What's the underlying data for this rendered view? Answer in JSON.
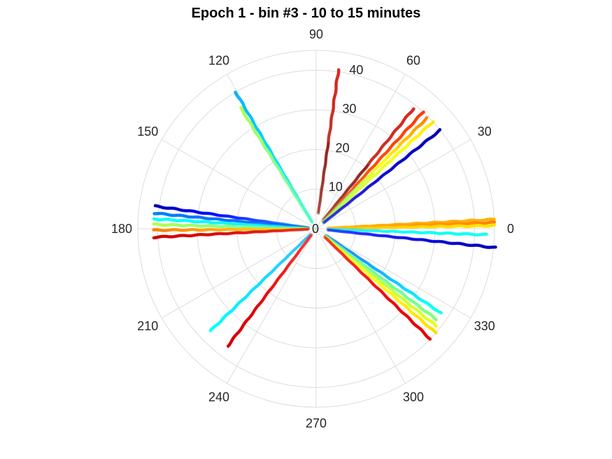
{
  "chart_data": {
    "type": "scatter",
    "projection": "polar",
    "title": "Epoch 1 - bin #3 - 10 to 15 minutes",
    "theta_unit": "degrees",
    "theta_ticks": [
      0,
      30,
      60,
      90,
      120,
      150,
      180,
      210,
      240,
      270,
      300,
      330
    ],
    "theta_tick_labels": [
      "0",
      "30",
      "60",
      "90",
      "120",
      "150",
      "180",
      "210",
      "240",
      "270",
      "300",
      "330"
    ],
    "r_ticks": [
      0,
      10,
      20,
      30,
      40
    ],
    "r_tick_labels": [
      "0",
      "10",
      "20",
      "30",
      "40"
    ],
    "rlim": [
      0,
      45
    ],
    "r_tick_label_angle_deg": 80,
    "grid": true,
    "colormap": "jet",
    "marker": "filled circle",
    "series": [
      {
        "theta": 82,
        "r": [
          4,
          40.5
        ],
        "color_from": 0.95,
        "color_to": 0.98,
        "shade": "dark"
      },
      {
        "theta": 51,
        "r": [
          3,
          39
        ],
        "color_from": 0.95,
        "color_to": 0.99,
        "shade": "dark"
      },
      {
        "theta": 47.5,
        "r": [
          2.5,
          40
        ],
        "color_from": 0.8,
        "color_to": 0.82
      },
      {
        "theta": 45,
        "r": [
          2.5,
          39.5
        ],
        "color_from": 0.45,
        "color_to": 0.75
      },
      {
        "theta": 42.5,
        "r": [
          2.5,
          40
        ],
        "color_from": 0.55,
        "color_to": 0.65
      },
      {
        "theta": 38.5,
        "r": [
          2.5,
          40
        ],
        "color_from": 0.1,
        "color_to": 0.05
      },
      {
        "theta": 3,
        "r": [
          3,
          45
        ],
        "color_from": 0.72,
        "color_to": 0.7
      },
      {
        "theta": 2,
        "r": [
          3,
          45
        ],
        "color_from": 0.7,
        "color_to": 0.75
      },
      {
        "theta": 1,
        "r": [
          3,
          45
        ],
        "color_from": 0.68,
        "color_to": 0.65
      },
      {
        "theta": -2,
        "r": [
          3,
          43
        ],
        "color_from": 0.35,
        "color_to": 0.4
      },
      {
        "theta": -6,
        "r": [
          3,
          45.5
        ],
        "color_from": 0.15,
        "color_to": 0.05
      },
      {
        "theta": -34,
        "r": [
          3,
          38
        ],
        "color_from": 0.2,
        "color_to": 0.4
      },
      {
        "theta": -37,
        "r": [
          3,
          38
        ],
        "color_from": 0.45,
        "color_to": 0.5
      },
      {
        "theta": -39,
        "r": [
          3,
          39
        ],
        "color_from": 0.5,
        "color_to": 0.6
      },
      {
        "theta": -41,
        "r": [
          3,
          40
        ],
        "color_from": 0.6,
        "color_to": 0.66
      },
      {
        "theta": -44,
        "r": [
          3,
          40
        ],
        "color_from": 0.88,
        "color_to": 0.9
      },
      {
        "theta": 120.5,
        "r": [
          2,
          40
        ],
        "color_from": 0.38,
        "color_to": 0.3
      },
      {
        "theta": 122,
        "r": [
          2,
          36
        ],
        "color_from": 0.45,
        "color_to": 0.55
      },
      {
        "theta": 172,
        "r": [
          2,
          41
        ],
        "color_from": 0.25,
        "color_to": 0.05
      },
      {
        "theta": 174.5,
        "r": [
          2,
          41
        ],
        "color_from": 0.2,
        "color_to": 0.25
      },
      {
        "theta": 176.5,
        "r": [
          2,
          41
        ],
        "color_from": 0.35,
        "color_to": 0.38
      },
      {
        "theta": 178.5,
        "r": [
          2,
          41
        ],
        "color_from": 0.45,
        "color_to": 0.55
      },
      {
        "theta": -179.5,
        "r": [
          2,
          41
        ],
        "color_from": 0.65,
        "color_to": 0.75
      },
      {
        "theta": -177,
        "r": [
          2,
          41
        ],
        "color_from": 0.9,
        "color_to": 0.92
      },
      {
        "theta": -136,
        "r": [
          2,
          37
        ],
        "color_from": 0.3,
        "color_to": 0.38
      },
      {
        "theta": -127,
        "r": [
          2,
          37
        ],
        "color_from": 0.88,
        "color_to": 0.92
      }
    ]
  }
}
